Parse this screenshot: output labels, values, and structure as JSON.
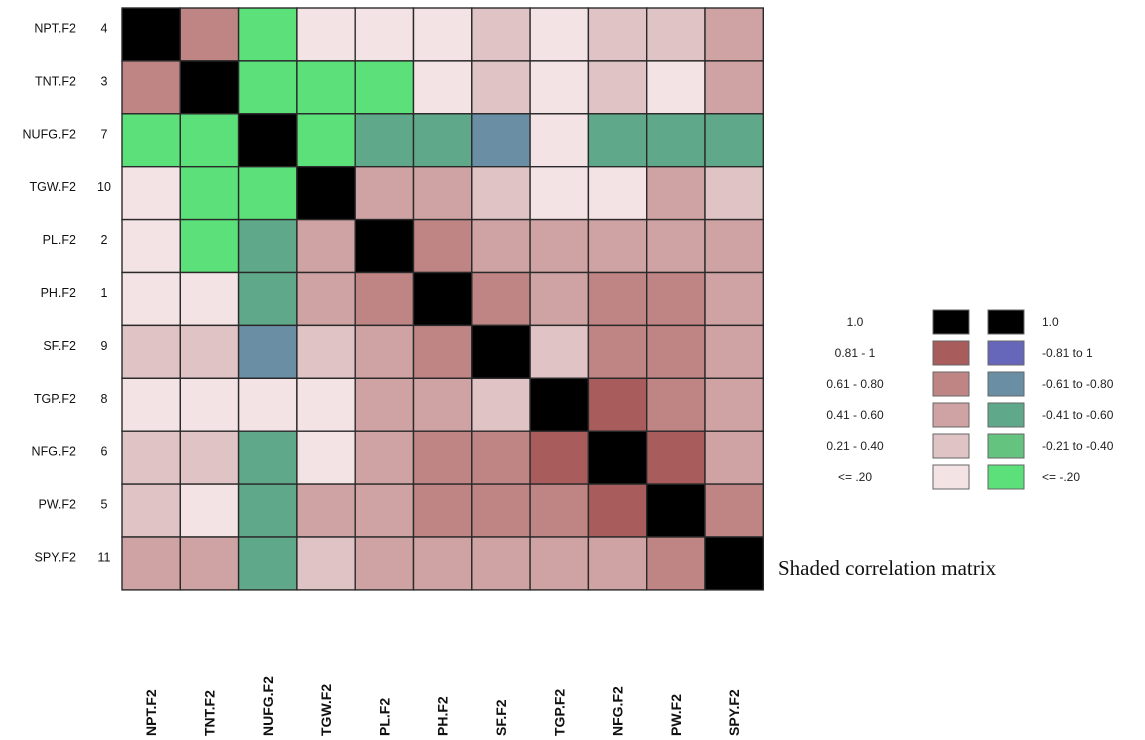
{
  "caption": "Shaded correlation matrix",
  "colors": {
    "diag": "#000000",
    "pos_0.81_1": "#a85c5c",
    "pos_0.61_0.80": "#bf8484",
    "pos_0.41_0.60": "#cfa3a3",
    "pos_0.21_0.40": "#e0c3c4",
    "pos_le_0.20": "#f3e3e4",
    "neg_0.81_1": "#6666bb",
    "neg_0.61_0.80": "#6a8fa5",
    "neg_0.41_0.60": "#5fa98a",
    "neg_0.21_0.40": "#64c47f",
    "neg_le_0.20": "#5be07a",
    "grid_border": "#2a2a2a"
  },
  "chart_data": {
    "type": "heatmap",
    "title": "",
    "rows": [
      {
        "name": "NPT.F2",
        "order": "4"
      },
      {
        "name": "TNT.F2",
        "order": "3"
      },
      {
        "name": "NUFG.F2",
        "order": "7"
      },
      {
        "name": "TGW.F2",
        "order": "10"
      },
      {
        "name": "PL.F2",
        "order": "2"
      },
      {
        "name": "PH.F2",
        "order": "1"
      },
      {
        "name": "SF.F2",
        "order": "9"
      },
      {
        "name": "TGP.F2",
        "order": "8"
      },
      {
        "name": "NFG.F2",
        "order": "6"
      },
      {
        "name": "PW.F2",
        "order": "5"
      },
      {
        "name": "SPY.F2",
        "order": "11"
      }
    ],
    "columns": [
      "NPT.F2",
      "TNT.F2",
      "NUFG.F2",
      "TGW.F2",
      "PL.F2",
      "PH.F2",
      "SF.F2",
      "TGP.F2",
      "NFG.F2",
      "PW.F2",
      "SPY.F2"
    ],
    "column_label_displayed": [
      "NPT.F2",
      "TNT.F2",
      "NUFG.F2",
      "TGW.F2",
      "PL.F2",
      "PH.F2",
      "SF.F2",
      "TGP.F2",
      "NFG.F2",
      "PW.F2",
      "SPY.F2"
    ],
    "matrix_class": [
      [
        "diag",
        "pos_0.61_0.80",
        "neg_le_0.20",
        "pos_le_0.20",
        "pos_le_0.20",
        "pos_le_0.20",
        "pos_0.21_0.40",
        "pos_le_0.20",
        "pos_0.21_0.40",
        "pos_0.21_0.40",
        "pos_0.41_0.60"
      ],
      [
        "pos_0.61_0.80",
        "diag",
        "neg_le_0.20",
        "neg_le_0.20",
        "neg_le_0.20",
        "pos_le_0.20",
        "pos_0.21_0.40",
        "pos_le_0.20",
        "pos_0.21_0.40",
        "pos_le_0.20",
        "pos_0.41_0.60"
      ],
      [
        "neg_le_0.20",
        "neg_le_0.20",
        "diag",
        "neg_le_0.20",
        "neg_0.41_0.60",
        "neg_0.41_0.60",
        "neg_0.61_0.80",
        "pos_le_0.20",
        "neg_0.41_0.60",
        "neg_0.41_0.60",
        "neg_0.41_0.60"
      ],
      [
        "pos_le_0.20",
        "neg_le_0.20",
        "neg_le_0.20",
        "diag",
        "pos_0.41_0.60",
        "pos_0.41_0.60",
        "pos_0.21_0.40",
        "pos_le_0.20",
        "pos_le_0.20",
        "pos_0.41_0.60",
        "pos_0.21_0.40"
      ],
      [
        "pos_le_0.20",
        "neg_le_0.20",
        "neg_0.41_0.60",
        "pos_0.41_0.60",
        "diag",
        "pos_0.61_0.80",
        "pos_0.41_0.60",
        "pos_0.41_0.60",
        "pos_0.41_0.60",
        "pos_0.41_0.60",
        "pos_0.41_0.60"
      ],
      [
        "pos_le_0.20",
        "pos_le_0.20",
        "neg_0.41_0.60",
        "pos_0.41_0.60",
        "pos_0.61_0.80",
        "diag",
        "pos_0.61_0.80",
        "pos_0.41_0.60",
        "pos_0.61_0.80",
        "pos_0.61_0.80",
        "pos_0.41_0.60"
      ],
      [
        "pos_0.21_0.40",
        "pos_0.21_0.40",
        "neg_0.61_0.80",
        "pos_0.21_0.40",
        "pos_0.41_0.60",
        "pos_0.61_0.80",
        "diag",
        "pos_0.21_0.40",
        "pos_0.61_0.80",
        "pos_0.61_0.80",
        "pos_0.41_0.60"
      ],
      [
        "pos_le_0.20",
        "pos_le_0.20",
        "pos_le_0.20",
        "pos_le_0.20",
        "pos_0.41_0.60",
        "pos_0.41_0.60",
        "pos_0.21_0.40",
        "diag",
        "pos_0.81_1",
        "pos_0.61_0.80",
        "pos_0.41_0.60"
      ],
      [
        "pos_0.21_0.40",
        "pos_0.21_0.40",
        "neg_0.41_0.60",
        "pos_le_0.20",
        "pos_0.41_0.60",
        "pos_0.61_0.80",
        "pos_0.61_0.80",
        "pos_0.81_1",
        "diag",
        "pos_0.81_1",
        "pos_0.41_0.60"
      ],
      [
        "pos_0.21_0.40",
        "pos_le_0.20",
        "neg_0.41_0.60",
        "pos_0.41_0.60",
        "pos_0.41_0.60",
        "pos_0.61_0.80",
        "pos_0.61_0.80",
        "pos_0.61_0.80",
        "pos_0.81_1",
        "diag",
        "pos_0.61_0.80"
      ],
      [
        "pos_0.41_0.60",
        "pos_0.41_0.60",
        "neg_0.41_0.60",
        "pos_0.21_0.40",
        "pos_0.41_0.60",
        "pos_0.41_0.60",
        "pos_0.41_0.60",
        "pos_0.41_0.60",
        "pos_0.41_0.60",
        "pos_0.61_0.80",
        "diag"
      ]
    ],
    "legend": {
      "positive": [
        {
          "label": "1.0",
          "class": "diag"
        },
        {
          "label": "0.81 - 1",
          "class": "pos_0.81_1"
        },
        {
          "label": "0.61 - 0.80",
          "class": "pos_0.61_0.80"
        },
        {
          "label": "0.41 - 0.60",
          "class": "pos_0.41_0.60"
        },
        {
          "label": "0.21 - 0.40",
          "class": "pos_0.21_0.40"
        },
        {
          "label": "<= .20",
          "class": "pos_le_0.20"
        }
      ],
      "negative": [
        {
          "label": "1.0",
          "class": "diag"
        },
        {
          "label": "-0.81 to 1",
          "class": "neg_0.81_1"
        },
        {
          "label": "-0.61 to -0.80",
          "class": "neg_0.61_0.80"
        },
        {
          "label": "-0.41 to -0.60",
          "class": "neg_0.41_0.60"
        },
        {
          "label": "-0.21 to -0.40",
          "class": "neg_0.21_0.40"
        },
        {
          "label": "<= -.20",
          "class": "neg_le_0.20"
        }
      ],
      "placement": "right"
    }
  }
}
